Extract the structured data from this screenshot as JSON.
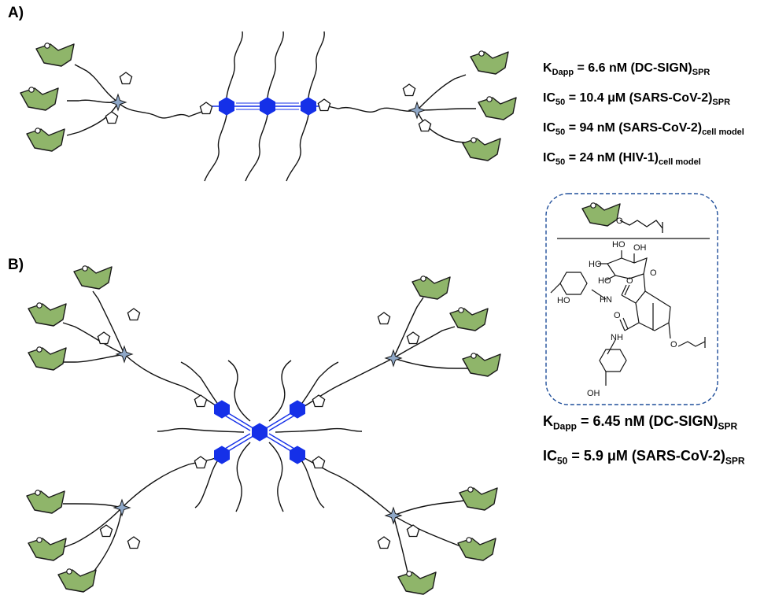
{
  "panels": {
    "a": {
      "label": "A)",
      "metrics": [
        {
          "main": "K",
          "sub": "Dapp",
          "rest": " = 6.6 nM (DC-SIGN)",
          "tail": "SPR"
        },
        {
          "main": "IC",
          "sub": "50",
          "rest": " = 10.4 μM (SARS-CoV-2)",
          "tail": "SPR"
        },
        {
          "main": "IC",
          "sub": "50",
          "rest": " = 94 nM (SARS-CoV-2)",
          "tail": "cell model"
        },
        {
          "main": "IC",
          "sub": "50",
          "rest": " = 24 nM (HIV-1)",
          "tail": "cell model"
        }
      ]
    },
    "b": {
      "label": "B)",
      "metrics": [
        {
          "main": "K",
          "sub": "Dapp",
          "rest": " = 6.45 nM (DC-SIGN)",
          "tail": "SPR"
        },
        {
          "main": "IC",
          "sub": "50",
          "rest": " = 5.9 μM (SARS-CoV-2)",
          "tail": "SPR"
        }
      ]
    }
  },
  "structure_labels": {
    "ho_1": "HO",
    "oh_1": "OH",
    "ho_2": "HO",
    "ho_3": "HO",
    "o_ring": "O",
    "hn": "HN",
    "o_carbonyl_1": "O",
    "o_carbonyl_2": "O",
    "nh": "NH",
    "o_linker": "O",
    "ho_4": "HO",
    "oh_2": "OH",
    "legend_o": "O"
  },
  "colors": {
    "sugar_fill": "#8fb56a",
    "sugar_stroke": "#1a1a1a",
    "core_blue": "#1530e8",
    "branch_star": "#8fa8c8",
    "legend_border": "#1f4e9a"
  }
}
